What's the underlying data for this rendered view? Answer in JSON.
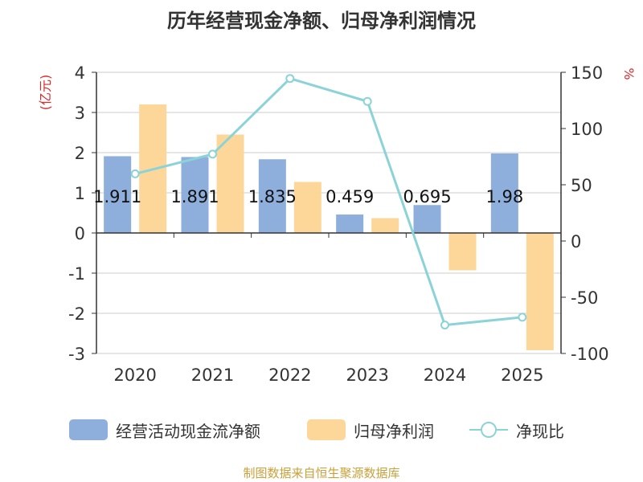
{
  "title": "历年经营现金净额、归母净利润情况",
  "source": "制图数据来自恒生聚源数据库",
  "colors": {
    "cash": "#8eaedc",
    "profit": "#fdd79a",
    "ratio": "#8cd3d7",
    "axis": "#333333",
    "grid": "#cccccc",
    "unit": "#d92b2b"
  },
  "chart_data": {
    "type": "bar",
    "categories": [
      "2020",
      "2021",
      "2022",
      "2023",
      "2024",
      "2025"
    ],
    "series": [
      {
        "name": "经营活动现金流净额",
        "type": "bar",
        "axis": "left",
        "values": [
          1.911,
          1.891,
          1.835,
          0.459,
          0.695,
          1.98
        ],
        "labels": [
          "1.911",
          "1.891",
          "1.835",
          "0.459",
          "0.695",
          "1.98"
        ]
      },
      {
        "name": "归母净利润",
        "type": "bar",
        "axis": "left",
        "values": [
          3.2,
          2.45,
          1.27,
          0.37,
          -0.93,
          -2.92
        ]
      },
      {
        "name": "净现比",
        "type": "line",
        "axis": "right",
        "values": [
          59.7,
          77.2,
          144.5,
          124.1,
          -74.7,
          -67.8
        ]
      }
    ],
    "left_axis": {
      "label": "(亿元)",
      "min": -3,
      "max": 4,
      "ticks": [
        "-3",
        "-2",
        "-1",
        "0",
        "1",
        "2",
        "3",
        "4"
      ]
    },
    "right_axis": {
      "label": "%",
      "min": -100,
      "max": 150,
      "ticks": [
        "-100",
        "-50",
        "0",
        "50",
        "100",
        "150"
      ]
    },
    "legend_position": "bottom"
  }
}
